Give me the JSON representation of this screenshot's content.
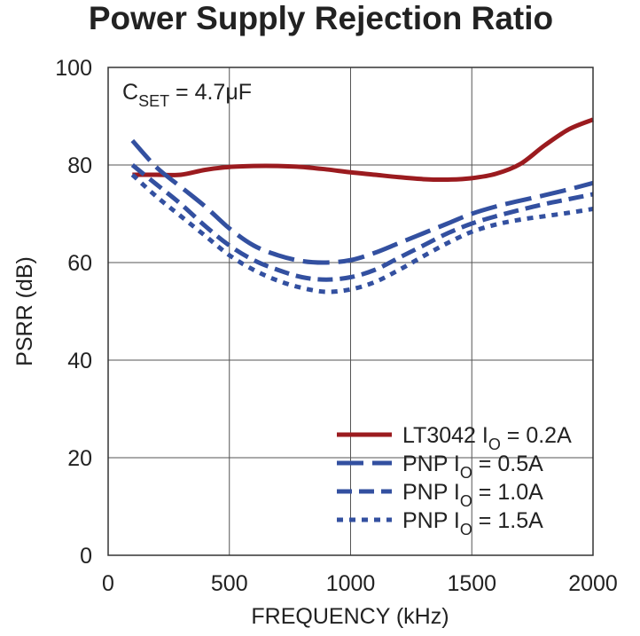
{
  "chart_data": {
    "type": "line",
    "title": "Power Supply Rejection Ratio",
    "xlabel": "FREQUENCY (kHz)",
    "ylabel": "PSRR (dB)",
    "xlim": [
      0,
      2000
    ],
    "ylim": [
      0,
      100
    ],
    "x_ticks": [
      "0",
      "500",
      "1000",
      "1500",
      "2000"
    ],
    "y_ticks": [
      "0",
      "20",
      "40",
      "60",
      "80",
      "100"
    ],
    "grid": true,
    "legend_position": "bottom-right",
    "annotation": {
      "main": "C",
      "sub": "SET",
      "rest": " = 4.7μF"
    },
    "series": [
      {
        "label_main": "LT3042 I",
        "label_sub": "O",
        "label_rest": " = 0.2A",
        "color": "#9b1b1f",
        "style": "solid",
        "x": [
          100,
          200,
          300,
          400,
          500,
          600,
          700,
          800,
          900,
          1000,
          1100,
          1200,
          1300,
          1400,
          1500,
          1600,
          1700,
          1800,
          1900,
          2000
        ],
        "y": [
          78,
          78,
          78,
          79,
          79.6,
          79.8,
          79.8,
          79.6,
          79.1,
          78.5,
          78,
          77.5,
          77.1,
          77,
          77.3,
          78.2,
          80.2,
          84,
          87.3,
          89.3
        ]
      },
      {
        "label_main": "PNP I",
        "label_sub": "O",
        "label_rest": " = 0.5A",
        "color": "#3350a0",
        "style": "long-dash",
        "x": [
          100,
          200,
          300,
          400,
          500,
          600,
          700,
          800,
          900,
          1000,
          1100,
          1200,
          1300,
          1400,
          1500,
          1600,
          1700,
          1800,
          1900,
          2000
        ],
        "y": [
          85,
          79.5,
          75.5,
          71.5,
          67,
          63.5,
          61.5,
          60.3,
          60,
          60.5,
          62,
          64,
          66,
          68,
          70,
          71.5,
          72.7,
          73.8,
          75,
          76.3
        ]
      },
      {
        "label_main": "PNP I",
        "label_sub": "O",
        "label_rest": " = 1.0A",
        "color": "#3350a0",
        "style": "dash",
        "x": [
          100,
          200,
          300,
          400,
          500,
          600,
          700,
          800,
          900,
          1000,
          1100,
          1200,
          1300,
          1400,
          1500,
          1600,
          1700,
          1800,
          1900,
          2000
        ],
        "y": [
          80,
          76,
          72,
          67.5,
          63.5,
          60.5,
          58.5,
          57,
          56.5,
          57,
          58.5,
          61,
          63.5,
          66,
          68,
          69.5,
          70.8,
          72,
          73,
          74
        ]
      },
      {
        "label_main": "PNP I",
        "label_sub": "O",
        "label_rest": " = 1.5A",
        "color": "#3350a0",
        "style": "dot",
        "x": [
          100,
          200,
          300,
          400,
          500,
          600,
          700,
          800,
          900,
          1000,
          1100,
          1200,
          1300,
          1400,
          1500,
          1600,
          1700,
          1800,
          1900,
          2000
        ],
        "y": [
          78,
          73.5,
          69.5,
          65.5,
          61.5,
          58.5,
          56.3,
          54.8,
          54,
          54.5,
          56,
          58.5,
          61.3,
          64,
          66.3,
          67.8,
          68.8,
          69.5,
          70.2,
          71
        ]
      }
    ]
  }
}
